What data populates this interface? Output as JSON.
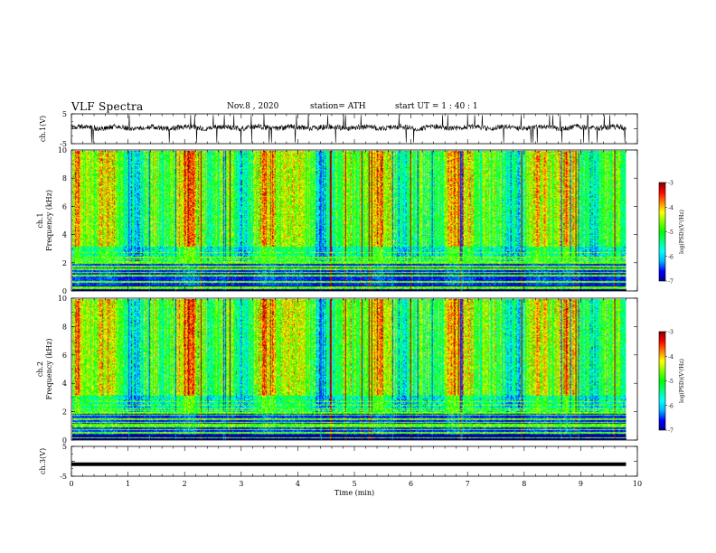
{
  "header": {
    "title": "VLF Spectra",
    "date": "Nov.8  , 2020",
    "station": "station= ATH",
    "start": "start  UT =   1 : 40 : 1"
  },
  "chart_data": [
    {
      "type": "line",
      "name": "ch1-waveform",
      "ylabel": "ch.1(V)",
      "ylim": [
        -5,
        5
      ],
      "yticks": [
        "5",
        "-5"
      ],
      "xlim": [
        0,
        10
      ],
      "x_extent": [
        0,
        9.8
      ]
    },
    {
      "type": "heatmap",
      "name": "ch1-spectrogram",
      "ylabel_lines": [
        "ch.1",
        "Frequency (kHz)"
      ],
      "ylim": [
        0,
        10
      ],
      "yticks": [
        "0",
        "2",
        "4",
        "6",
        "8",
        "10"
      ],
      "xlim": [
        0,
        10
      ],
      "colorbar": {
        "label": "log(PSD)(V²/Hz)",
        "range": [
          -7,
          -3
        ],
        "ticks": [
          "-3",
          "-4",
          "-5",
          "-6",
          "-7"
        ]
      }
    },
    {
      "type": "heatmap",
      "name": "ch2-spectrogram",
      "ylabel_lines": [
        "ch.2",
        "Frequency (kHz)"
      ],
      "ylim": [
        0,
        10
      ],
      "yticks": [
        "0",
        "2",
        "4",
        "6",
        "8",
        "10"
      ],
      "xlim": [
        0,
        10
      ],
      "colorbar": {
        "label": "log(PSD)(V²/Hz)",
        "range": [
          -7,
          -3
        ],
        "ticks": [
          "-3",
          "-4",
          "-5",
          "-6",
          "-7"
        ]
      }
    },
    {
      "type": "line",
      "name": "ch3-waveform",
      "ylabel": "ch.3(V)",
      "ylim": [
        -5,
        5
      ],
      "yticks": [
        "5",
        "-5"
      ],
      "xlim": [
        0,
        10
      ],
      "x_extent": [
        0,
        9.8
      ],
      "level": -1
    }
  ],
  "xaxis": {
    "label": "Time (min)",
    "ticks": [
      "0",
      "1",
      "2",
      "3",
      "4",
      "5",
      "6",
      "7",
      "8",
      "9",
      "10"
    ]
  },
  "colors": {
    "scale": [
      "#00008b",
      "#0000ff",
      "#00b4ff",
      "#00ffff",
      "#00ff80",
      "#00ff00",
      "#80ff00",
      "#ffff00",
      "#ff8000",
      "#ff0000",
      "#800000"
    ]
  }
}
